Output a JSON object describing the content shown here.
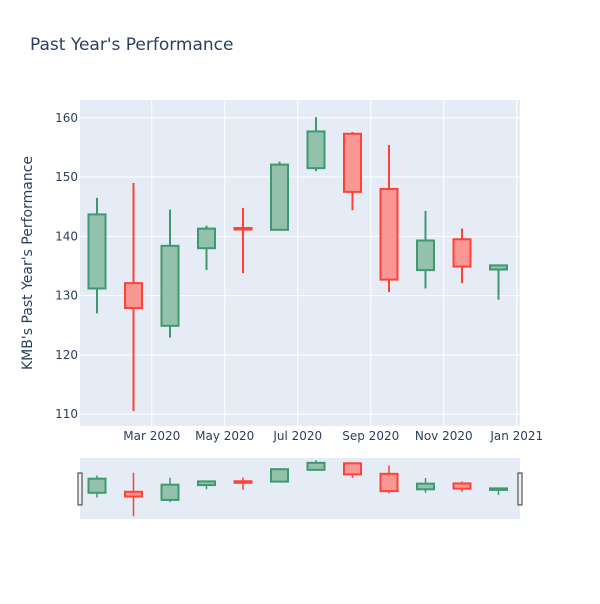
{
  "title": "Past Year's Performance",
  "chart_data": {
    "type": "candlestick",
    "title": "Past Year's Performance",
    "xlabel": "",
    "ylabel": "KMB's Past Year's Performance",
    "ylim": [
      108,
      163
    ],
    "yticks": [
      110,
      120,
      130,
      140,
      150,
      160
    ],
    "xticks": [
      {
        "label": "Mar 2020",
        "month_index": 1.5
      },
      {
        "label": "May 2020",
        "month_index": 3.5
      },
      {
        "label": "Jul 2020",
        "month_index": 5.5
      },
      {
        "label": "Sep 2020",
        "month_index": 7.5
      },
      {
        "label": "Nov 2020",
        "month_index": 9.5
      },
      {
        "label": "Jan 2021",
        "month_index": 11.5
      }
    ],
    "candles": [
      {
        "month": "Jan 2020",
        "open": 131.2,
        "high": 146.5,
        "low": 127.0,
        "close": 143.7
      },
      {
        "month": "Feb 2020",
        "open": 132.1,
        "high": 149.0,
        "low": 110.5,
        "close": 127.9
      },
      {
        "month": "Mar 2020",
        "open": 124.9,
        "high": 144.5,
        "low": 122.9,
        "close": 138.4
      },
      {
        "month": "Apr 2020",
        "open": 138.0,
        "high": 141.8,
        "low": 134.3,
        "close": 141.3
      },
      {
        "month": "May 2020",
        "open": 141.4,
        "high": 144.8,
        "low": 133.8,
        "close": 141.2
      },
      {
        "month": "Jun 2020",
        "open": 141.1,
        "high": 152.6,
        "low": 141.1,
        "close": 152.1
      },
      {
        "month": "Jul 2020",
        "open": 151.5,
        "high": 160.1,
        "low": 151.0,
        "close": 157.7
      },
      {
        "month": "Aug 2020",
        "open": 157.3,
        "high": 157.6,
        "low": 144.4,
        "close": 147.5
      },
      {
        "month": "Sep 2020",
        "open": 148.0,
        "high": 155.4,
        "low": 130.6,
        "close": 132.7
      },
      {
        "month": "Oct 2020",
        "open": 134.3,
        "high": 144.3,
        "low": 131.2,
        "close": 139.3
      },
      {
        "month": "Nov 2020",
        "open": 139.5,
        "high": 141.3,
        "low": 132.1,
        "close": 134.9
      },
      {
        "month": "Dec 2020",
        "open": 134.4,
        "high": 135.2,
        "low": 129.3,
        "close": 135.1
      }
    ],
    "colors": {
      "increasing_line": "#3d9970",
      "increasing_fill": "#93c1ab",
      "decreasing_line": "#ff4136",
      "decreasing_fill": "#f99794",
      "plot_bg": "#e5ecf6",
      "grid": "#ffffff",
      "text": "#2a3f5f"
    },
    "grid": true,
    "legend": "none",
    "rangeslider": true
  }
}
